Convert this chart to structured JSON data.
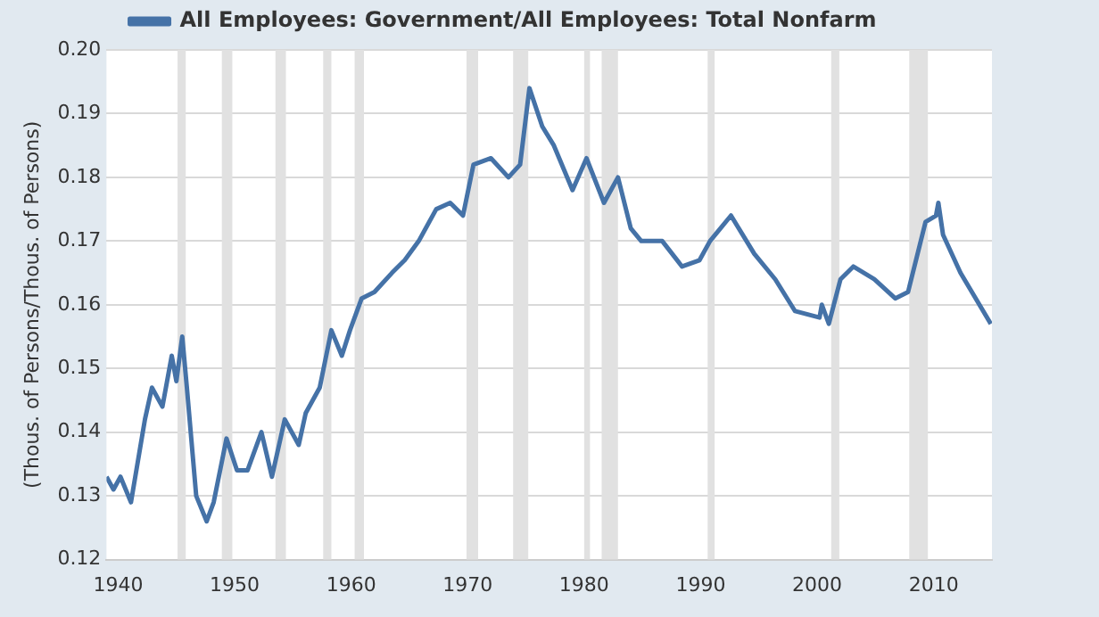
{
  "chart_data": {
    "type": "line",
    "ylabel": "(Thous. of Persons/Thous. of Persons)",
    "legend": "top",
    "grid": "y",
    "marker": "none",
    "line_style": "solid",
    "xlim": [
      1939,
      2015
    ],
    "xticks": [
      1940,
      1950,
      1960,
      1970,
      1980,
      1990,
      2000,
      2010
    ],
    "ylim": [
      0.12,
      0.2
    ],
    "yticks": [
      0.12,
      0.13,
      0.14,
      0.15,
      0.16,
      0.17,
      0.18,
      0.19,
      {
        "value": 0.2,
        "label": "0.20"
      }
    ],
    "bands": [
      {
        "axis": "x",
        "from": 1945.1,
        "to": 1945.8,
        "color": "#e1e1e1"
      },
      {
        "axis": "x",
        "from": 1948.9,
        "to": 1949.8,
        "color": "#e1e1e1"
      },
      {
        "axis": "x",
        "from": 1953.5,
        "to": 1954.4,
        "color": "#e1e1e1"
      },
      {
        "axis": "x",
        "from": 1957.6,
        "to": 1958.3,
        "color": "#e1e1e1"
      },
      {
        "axis": "x",
        "from": 1960.3,
        "to": 1961.1,
        "color": "#e1e1e1"
      },
      {
        "axis": "x",
        "from": 1969.9,
        "to": 1970.9,
        "color": "#e1e1e1"
      },
      {
        "axis": "x",
        "from": 1973.9,
        "to": 1975.2,
        "color": "#e1e1e1"
      },
      {
        "axis": "x",
        "from": 1980.0,
        "to": 1980.5,
        "color": "#e1e1e1"
      },
      {
        "axis": "x",
        "from": 1981.5,
        "to": 1982.9,
        "color": "#e1e1e1"
      },
      {
        "axis": "x",
        "from": 1990.6,
        "to": 1991.2,
        "color": "#e1e1e1"
      },
      {
        "axis": "x",
        "from": 2001.2,
        "to": 2001.9,
        "color": "#e1e1e1"
      },
      {
        "axis": "x",
        "from": 2007.9,
        "to": 2009.5,
        "color": "#e1e1e1"
      }
    ],
    "series": [
      {
        "name": "All Employees: Government/All Employees: Total Nonfarm",
        "color": "#4572a7",
        "x": [
          1939.0,
          1939.6,
          1940.2,
          1941.1,
          1942.3,
          1942.9,
          1943.8,
          1944.6,
          1945.0,
          1945.5,
          1945.9,
          1946.7,
          1947.6,
          1948.2,
          1949.3,
          1950.2,
          1951.1,
          1952.3,
          1953.2,
          1954.3,
          1955.5,
          1956.1,
          1957.3,
          1958.3,
          1959.2,
          1959.9,
          1960.9,
          1962.0,
          1963.5,
          1964.6,
          1965.8,
          1967.3,
          1968.5,
          1969.6,
          1970.5,
          1972.0,
          1973.5,
          1974.5,
          1975.3,
          1976.4,
          1977.4,
          1979.0,
          1980.2,
          1981.7,
          1982.9,
          1984.0,
          1984.9,
          1986.7,
          1988.4,
          1989.9,
          1990.8,
          1992.6,
          1994.6,
          1996.4,
          1998.1,
          2000.2,
          2000.4,
          2001.0,
          2002.0,
          2003.1,
          2004.9,
          2006.7,
          2007.8,
          2009.3,
          2010.2,
          2010.4,
          2010.8,
          2012.3,
          2014.9
        ],
        "values": [
          0.133,
          0.131,
          0.133,
          0.129,
          0.142,
          0.147,
          0.144,
          0.152,
          0.148,
          0.155,
          0.147,
          0.13,
          0.126,
          0.129,
          0.139,
          0.134,
          0.134,
          0.14,
          0.133,
          0.142,
          0.138,
          0.143,
          0.147,
          0.156,
          0.152,
          0.156,
          0.161,
          0.162,
          0.165,
          0.167,
          0.17,
          0.175,
          0.176,
          0.174,
          0.182,
          0.183,
          0.18,
          0.182,
          0.194,
          0.188,
          0.185,
          0.178,
          0.183,
          0.176,
          0.18,
          0.172,
          0.17,
          0.17,
          0.166,
          0.167,
          0.17,
          0.174,
          0.168,
          0.164,
          0.159,
          0.158,
          0.16,
          0.157,
          0.164,
          0.166,
          0.164,
          0.161,
          0.162,
          0.173,
          0.174,
          0.176,
          0.171,
          0.165,
          0.157
        ]
      }
    ]
  }
}
